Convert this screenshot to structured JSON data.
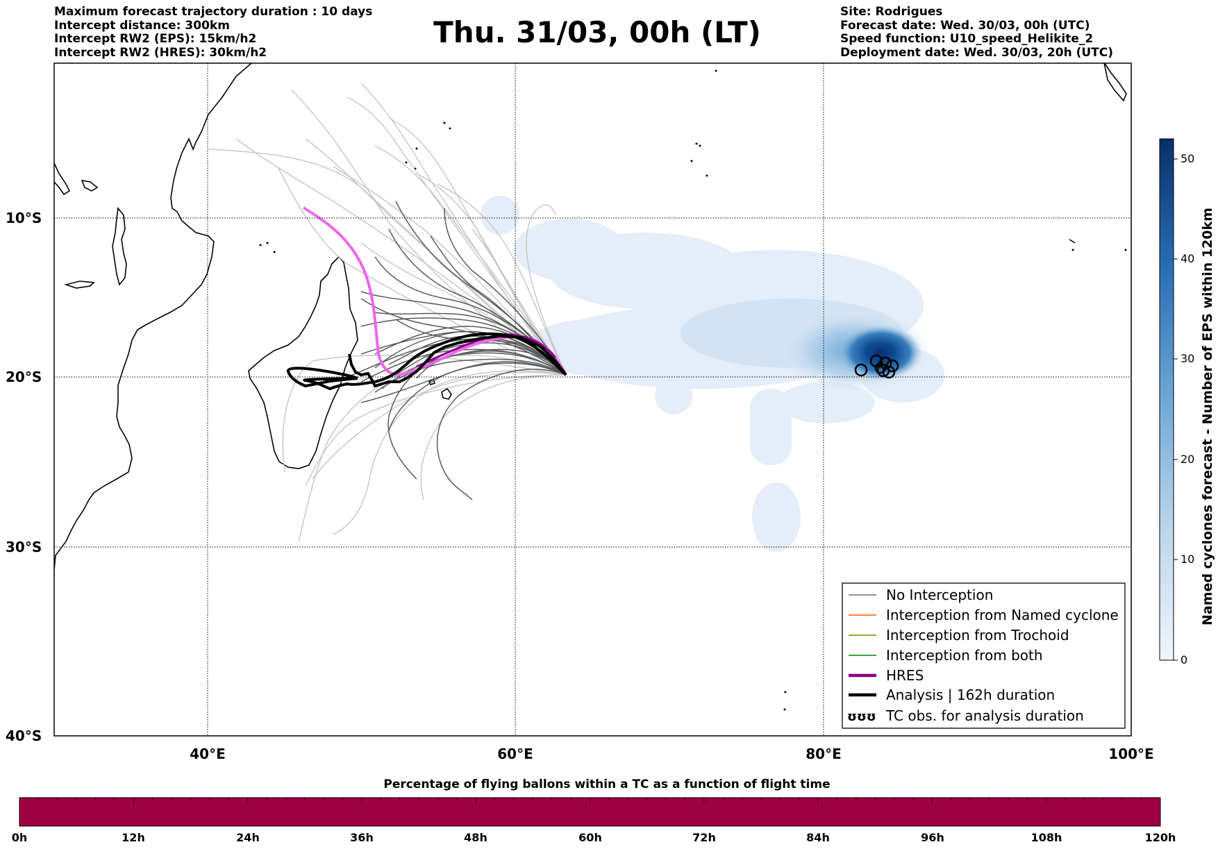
{
  "header_left": [
    "Maximum forecast trajectory duration : 10 days",
    "Intercept distance: 300km",
    "Intercept RW2 (EPS):  15km/h2",
    "Intercept RW2 (HRES): 30km/h2"
  ],
  "title": "Thu. 31/03, 00h (LT)",
  "header_right": [
    "Site: Rodrigues",
    "Forecast date: Wed. 30/03, 00h (UTC)",
    "Speed function: U10_speed_Helikite_2",
    "Deployment date: Wed. 30/03, 20h (UTC)"
  ],
  "map": {
    "lat_labels": [
      "10°S",
      "20°S",
      "30°S",
      "40°S"
    ],
    "lon_labels": [
      "40°E",
      "60°E",
      "80°E",
      "100°E"
    ],
    "lon_range": [
      30,
      100
    ],
    "lat_range": [
      -40,
      -0.4
    ],
    "gridlines": true
  },
  "legend": {
    "placement": "bottom-right",
    "items": [
      {
        "label": "No Interception",
        "color": "#6e6e6e",
        "style": "thin"
      },
      {
        "label": "Interception from Named cyclone",
        "color": "#ff5000",
        "style": "thin"
      },
      {
        "label": "Interception from Trochoid",
        "color": "#808000",
        "style": "thin"
      },
      {
        "label": "Interception from both",
        "color": "#008000",
        "style": "thin"
      },
      {
        "label": "HRES",
        "color": "#8b008b",
        "style": "thick"
      },
      {
        "label": "Analysis | 162h duration",
        "color": "#000000",
        "style": "thick"
      },
      {
        "label": "TC obs. for analysis duration",
        "color": "#000000",
        "style": "markers",
        "glyph": "ʊʊʊ"
      }
    ]
  },
  "colorbar": {
    "label": "Named cyclones forecast - Number of EPS within 120km",
    "ticks": [
      "0",
      "10",
      "20",
      "30",
      "40",
      "50"
    ],
    "range": [
      0,
      52
    ],
    "cmap_start": "#e6eef8",
    "cmap_end": "#08306b"
  },
  "bottom_bar": {
    "label": "Percentage of flying ballons within a TC as a function of flight time",
    "ticks": [
      "0h",
      "12h",
      "24h",
      "36h",
      "48h",
      "60h",
      "72h",
      "84h",
      "96h",
      "108h",
      "120h"
    ],
    "color": "#9e0040"
  },
  "colors": {
    "hres": "#ee66ee",
    "hres_overlap": "#8b008b",
    "analysis": "#000000",
    "ensemble_dark": "#555555",
    "ensemble_light": "#c8c8c8"
  }
}
